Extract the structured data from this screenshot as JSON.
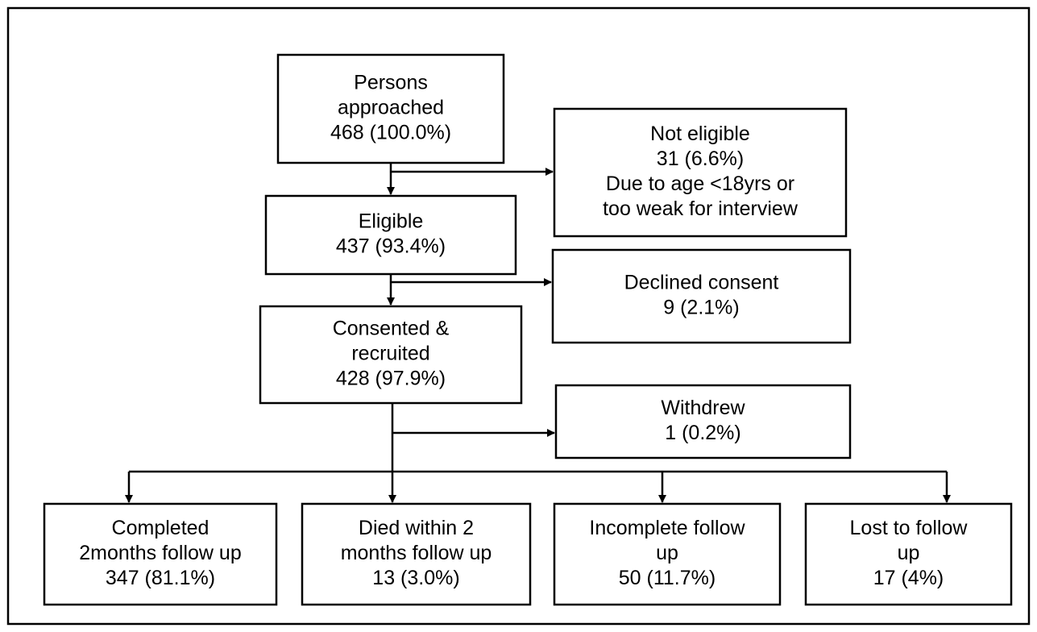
{
  "nodes": [
    {
      "lines": [
        "Persons",
        "approached",
        "468 (100.0%)"
      ]
    },
    {
      "lines": [
        "Not eligible",
        "31 (6.6%)",
        "Due to age <18yrs or",
        "too weak for interview"
      ]
    },
    {
      "lines": [
        "Eligible",
        "437 (93.4%)"
      ]
    },
    {
      "lines": [
        "Declined consent",
        "9 (2.1%)"
      ]
    },
    {
      "lines": [
        "Consented &",
        "recruited",
        "428 (97.9%)"
      ]
    },
    {
      "lines": [
        "Withdrew",
        "1 (0.2%)"
      ]
    },
    {
      "lines": [
        "Completed",
        "2months follow up",
        "347 (81.1%)"
      ]
    },
    {
      "lines": [
        "Died within 2",
        "months follow up",
        "13 (3.0%)"
      ]
    },
    {
      "lines": [
        "Incomplete follow",
        "up",
        "50 (11.7%)"
      ]
    },
    {
      "lines": [
        "Lost to follow",
        "up",
        "17 (4%)"
      ]
    }
  ]
}
